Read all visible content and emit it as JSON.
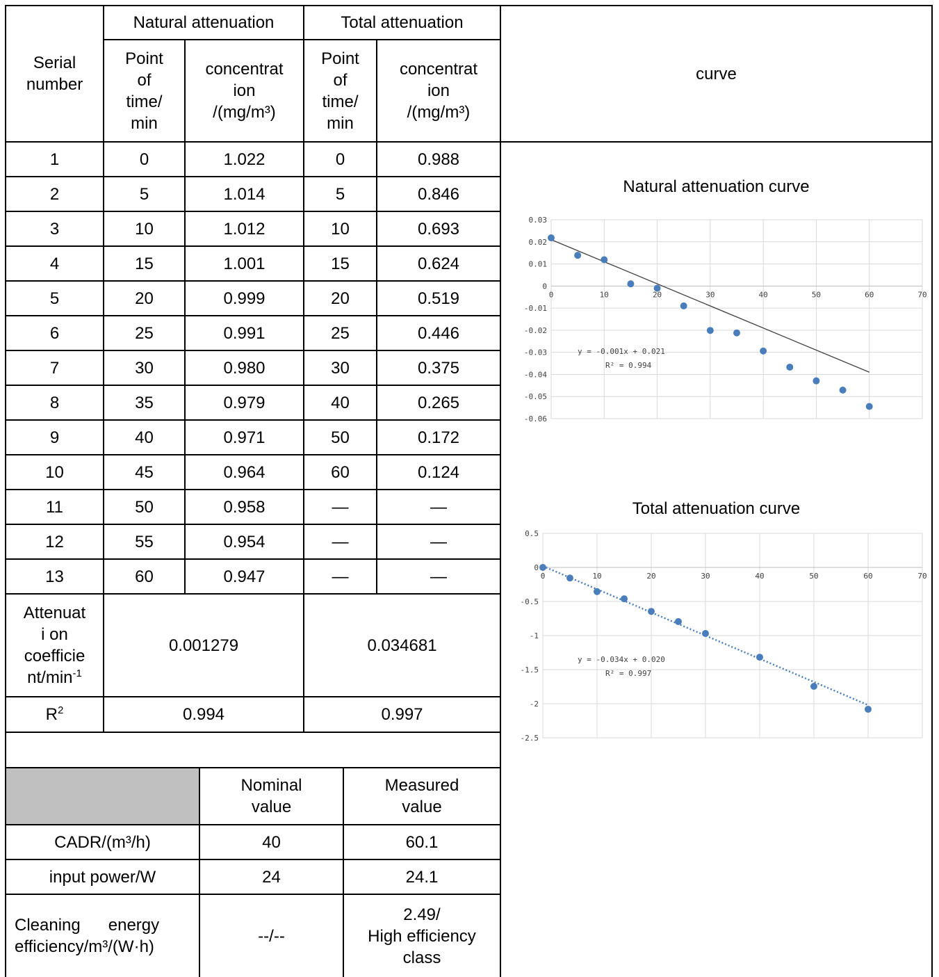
{
  "header": {
    "serial": "Serial\nnumber",
    "natural": "Natural attenuation",
    "total": "Total attenuation",
    "curve": "curve",
    "point_time": "Point\nof\ntime/\nmin",
    "concentration": "concentrat\nion\n/(mg/m³)"
  },
  "rows": [
    {
      "n": "1",
      "nt": "0",
      "nc": "1.022",
      "tt": "0",
      "tc": "0.988"
    },
    {
      "n": "2",
      "nt": "5",
      "nc": "1.014",
      "tt": "5",
      "tc": "0.846"
    },
    {
      "n": "3",
      "nt": "10",
      "nc": "1.012",
      "tt": "10",
      "tc": "0.693"
    },
    {
      "n": "4",
      "nt": "15",
      "nc": "1.001",
      "tt": "15",
      "tc": "0.624"
    },
    {
      "n": "5",
      "nt": "20",
      "nc": "0.999",
      "tt": "20",
      "tc": "0.519"
    },
    {
      "n": "6",
      "nt": "25",
      "nc": "0.991",
      "tt": "25",
      "tc": "0.446"
    },
    {
      "n": "7",
      "nt": "30",
      "nc": "0.980",
      "tt": "30",
      "tc": "0.375"
    },
    {
      "n": "8",
      "nt": "35",
      "nc": "0.979",
      "tt": "40",
      "tc": "0.265"
    },
    {
      "n": "9",
      "nt": "40",
      "nc": "0.971",
      "tt": "50",
      "tc": "0.172"
    },
    {
      "n": "10",
      "nt": "45",
      "nc": "0.964",
      "tt": "60",
      "tc": "0.124"
    },
    {
      "n": "11",
      "nt": "50",
      "nc": "0.958",
      "tt": "—",
      "tc": "—"
    },
    {
      "n": "12",
      "nt": "55",
      "nc": "0.954",
      "tt": "—",
      "tc": "—"
    },
    {
      "n": "13",
      "nt": "60",
      "nc": "0.947",
      "tt": "—",
      "tc": "—"
    }
  ],
  "attenuation": {
    "label_main": "Attenuat\ni on\ncoefficie\nnt/min",
    "label_sup": "-1",
    "natural": "0.001279",
    "total": "0.034681"
  },
  "r2": {
    "label_main": "R",
    "label_sup": "2",
    "natural": "0.994",
    "total": "0.997"
  },
  "summary": {
    "headers": {
      "nominal": "Nominal\nvalue",
      "measured": "Measured\nvalue"
    },
    "rows": [
      {
        "label": "CADR/(m³/h)",
        "nominal": "40",
        "measured": "60.1"
      },
      {
        "label": "input power/W",
        "nominal": "24",
        "measured": "24.1"
      },
      {
        "label": "Cleaning      energy\nefficiency/m³/(W·h)",
        "nominal": "--/--",
        "measured": "2.49/\nHigh efficiency\nclass"
      }
    ]
  },
  "chart_data": [
    {
      "type": "scatter",
      "title": "Natural attenuation curve",
      "x": [
        0,
        5,
        10,
        15,
        20,
        25,
        30,
        35,
        40,
        45,
        50,
        55,
        60
      ],
      "y": [
        0.0218,
        0.0139,
        0.0119,
        0.001,
        -0.001,
        -0.009,
        -0.0201,
        -0.0212,
        -0.0294,
        -0.0367,
        -0.0429,
        -0.0471,
        -0.0545
      ],
      "xlim": [
        0,
        70
      ],
      "ylim": [
        -0.06,
        0.03
      ],
      "xticks": [
        "0",
        "10",
        "20",
        "30",
        "40",
        "50",
        "60",
        "70"
      ],
      "yticks": [
        "0.03",
        "0.02",
        "0.01",
        "0",
        "-0.01",
        "-0.02",
        "-0.03",
        "-0.04",
        "-0.05",
        "-0.06"
      ],
      "trendline": {
        "slope": -0.001,
        "intercept": 0.021,
        "style": "solid",
        "color": "#404040"
      },
      "equation": "y = -0.001x + 0.021",
      "r2_label": "R² = 0.994",
      "marker_color": "#4a7ebb",
      "grid": true
    },
    {
      "type": "scatter",
      "title": "Total attenuation curve",
      "x": [
        0,
        5,
        10,
        15,
        20,
        25,
        30,
        40,
        50,
        60
      ],
      "y": [
        0,
        -0.155,
        -0.355,
        -0.46,
        -0.645,
        -0.795,
        -0.969,
        -1.317,
        -1.745,
        -2.081
      ],
      "xlim": [
        0,
        70
      ],
      "ylim": [
        -2.5,
        0.5
      ],
      "xticks": [
        "0",
        "10",
        "20",
        "30",
        "40",
        "50",
        "60",
        "70"
      ],
      "yticks": [
        "0.5",
        "0",
        "-0.5",
        "-1",
        "-1.5",
        "-2",
        "-2.5"
      ],
      "trendline": {
        "slope": -0.034,
        "intercept": 0.02,
        "style": "dotted",
        "color": "#4a7ebb"
      },
      "equation": "y = -0.034x + 0.020",
      "r2_label": "R² = 0.997",
      "marker_color": "#4a7ebb",
      "grid": true
    }
  ]
}
